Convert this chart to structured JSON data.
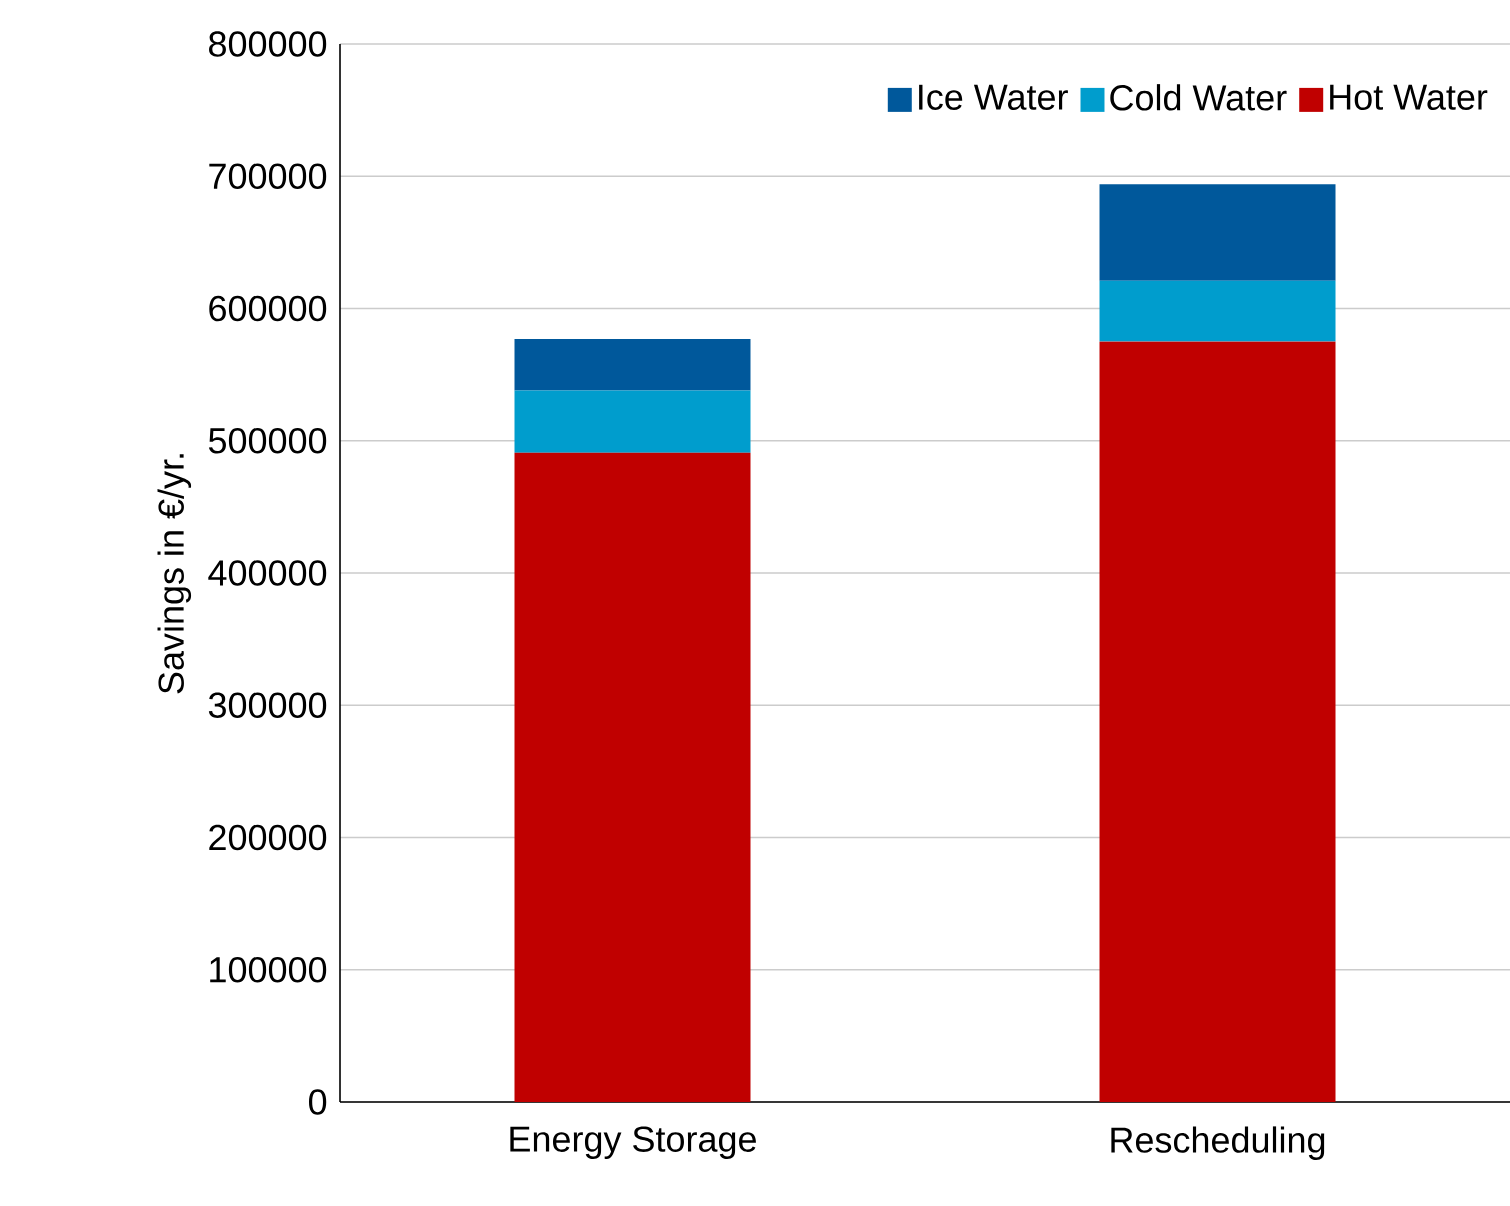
{
  "chart_data": {
    "type": "bar",
    "stacked": true,
    "ylabel": "Savings in €/yr.",
    "categories": [
      "Energy Storage",
      "Rescheduling"
    ],
    "series": [
      {
        "name": "Hot Water",
        "color": "#c00000",
        "values": [
          491000,
          575000
        ]
      },
      {
        "name": "Cold Water",
        "color": "#009dcd",
        "values": [
          47000,
          46000
        ]
      },
      {
        "name": "Ice Water",
        "color": "#00589b",
        "values": [
          39000,
          73000
        ]
      }
    ],
    "ylim": [
      0,
      800000
    ],
    "yticks": [
      0,
      100000,
      200000,
      300000,
      400000,
      500000,
      600000,
      700000,
      800000
    ],
    "grid": "y",
    "legend": "top right"
  }
}
